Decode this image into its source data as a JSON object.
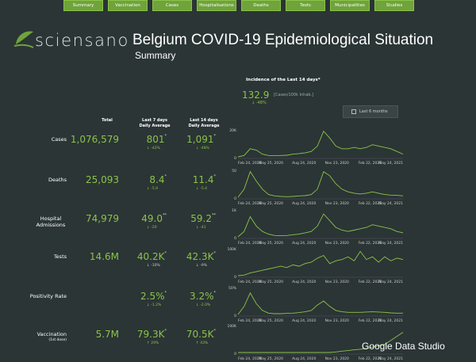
{
  "nav": [
    "Summary",
    "Vaccination",
    "Cases",
    "Hospitalisations",
    "Deaths",
    "Tests",
    "Municipalities",
    "Studies"
  ],
  "brand": "sciensano",
  "title": "Belgium COVID-19 Epidemiological Situation",
  "subtitle": "Summary",
  "incidence": {
    "heading": "Incidence of the Last 14 days*",
    "value": "132.9",
    "unit": "[Cases/100k Inhab.]",
    "change": "↓ -48%"
  },
  "toggle_label": "Last 6 months",
  "columns": {
    "total": "Total",
    "last7": [
      "Last 7 days",
      "Daily Average"
    ],
    "last14": [
      "Last 14 days",
      "Daily Average"
    ]
  },
  "rows": [
    {
      "label": "Cases",
      "sub": "",
      "total": "1,076,579",
      "avg7": "801",
      "sup7": "*",
      "chg7": "↓ -42%",
      "avg14": "1,091",
      "sup14": "*",
      "chg14": "↓ -48%",
      "top": 176
    },
    {
      "label": "Deaths",
      "sub": "",
      "total": "25,093",
      "avg7": "8.4",
      "sup7": "*",
      "chg7": "↓ -5.9",
      "avg14": "11.4",
      "sup14": "*",
      "chg14": "↓ -5.4",
      "top": 227
    },
    {
      "label": "Hospital Admissions",
      "sub": "",
      "total": "74,979",
      "avg7": "49.0",
      "sup7": "**",
      "chg7": "↓ -20",
      "avg14": "59.2",
      "sup14": "**",
      "chg14": "↓ -41",
      "top": 276
    },
    {
      "label": "Tests",
      "sub": "",
      "total": "14.6M",
      "avg7": "40.2K",
      "sup7": "*",
      "chg7": "↓ -10%",
      "avg14": "42.3K",
      "sup14": "*",
      "chg14": "↓ -9%",
      "top": 324
    },
    {
      "label": "Positivity Rate",
      "sub": "",
      "total": "",
      "avg7": "2.5%",
      "sup7": "*",
      "chg7": "↓ -1.2%",
      "avg14": "3.2%",
      "sup14": "*",
      "chg14": "↓ -2.0%",
      "top": 374
    },
    {
      "label": "Vaccination",
      "sub": "(1st dose)",
      "total": "5.7M",
      "avg7": "79.3K",
      "sup7": "*",
      "chg7": "↑ 29%",
      "avg14": "70.5K",
      "sup14": "*",
      "chg14": "↑ 43%",
      "top": 422
    }
  ],
  "charts": [
    {
      "ymax": "20K",
      "top": 160
    },
    {
      "ymax": "50",
      "top": 211
    },
    {
      "ymax": "1K",
      "top": 261
    },
    {
      "ymax": "100K",
      "top": 310
    },
    {
      "ymax": "50%",
      "top": 359
    },
    {
      "ymax": "100K",
      "top": 407
    }
  ],
  "x_ticks": [
    "Feb 24, 2020",
    "May 25, 2020",
    "Aug 24, 2020",
    "Nov 23, 2020",
    "Feb 22, 2021",
    "May 24, 2021"
  ],
  "chart_data": [
    {
      "type": "line",
      "ylabel": "",
      "ylim": [
        0,
        20000
      ],
      "values": [
        0,
        0.05,
        0.3,
        0.25,
        0.1,
        0.05,
        0.04,
        0.05,
        0.06,
        0.1,
        0.12,
        0.15,
        0.2,
        0.4,
        0.95,
        0.7,
        0.4,
        0.3,
        0.3,
        0.35,
        0.3,
        0.35,
        0.45,
        0.4,
        0.35,
        0.3,
        0.2,
        0.1
      ]
    },
    {
      "type": "line",
      "ylabel": "",
      "ylim": [
        0,
        50
      ],
      "values": [
        0,
        0.3,
        0.95,
        0.6,
        0.3,
        0.1,
        0.05,
        0.03,
        0.02,
        0.03,
        0.05,
        0.06,
        0.1,
        0.3,
        0.95,
        0.8,
        0.5,
        0.3,
        0.2,
        0.15,
        0.12,
        0.15,
        0.2,
        0.15,
        0.1,
        0.08,
        0.07,
        0.05
      ]
    },
    {
      "type": "line",
      "ylabel": "",
      "ylim": [
        0,
        1000
      ],
      "values": [
        0,
        0.2,
        0.75,
        0.4,
        0.2,
        0.1,
        0.05,
        0.04,
        0.05,
        0.08,
        0.1,
        0.15,
        0.2,
        0.4,
        0.85,
        0.6,
        0.35,
        0.25,
        0.2,
        0.25,
        0.3,
        0.35,
        0.45,
        0.4,
        0.35,
        0.3,
        0.2,
        0.15
      ]
    },
    {
      "type": "line",
      "ylabel": "",
      "ylim": [
        0,
        100000
      ],
      "values": [
        0,
        0.02,
        0.1,
        0.15,
        0.2,
        0.25,
        0.3,
        0.35,
        0.3,
        0.4,
        0.35,
        0.45,
        0.5,
        0.65,
        0.75,
        0.45,
        0.55,
        0.6,
        0.7,
        0.55,
        0.9,
        0.6,
        0.7,
        0.5,
        0.7,
        0.55,
        0.65,
        0.6
      ]
    },
    {
      "type": "line",
      "ylabel": "",
      "ylim": [
        0,
        0.5
      ],
      "values": [
        0,
        0.3,
        0.8,
        0.4,
        0.15,
        0.05,
        0.03,
        0.03,
        0.04,
        0.05,
        0.07,
        0.1,
        0.15,
        0.35,
        0.5,
        0.3,
        0.15,
        0.1,
        0.08,
        0.08,
        0.08,
        0.09,
        0.1,
        0.09,
        0.08,
        0.06,
        0.05,
        0.05
      ]
    },
    {
      "type": "line",
      "ylabel": "",
      "ylim": [
        0,
        100000
      ],
      "values": [
        0,
        0,
        0,
        0,
        0,
        0,
        0,
        0,
        0,
        0,
        0,
        0,
        0,
        0,
        0,
        0,
        0.02,
        0.05,
        0.07,
        0.1,
        0.12,
        0.15,
        0.2,
        0.25,
        0.3,
        0.45,
        0.6,
        0.75
      ]
    }
  ],
  "footer": "Google Data Studio",
  "colors": {
    "bg": "#2b3535",
    "accent": "#8bc34a",
    "nav": "#6fa33b"
  }
}
